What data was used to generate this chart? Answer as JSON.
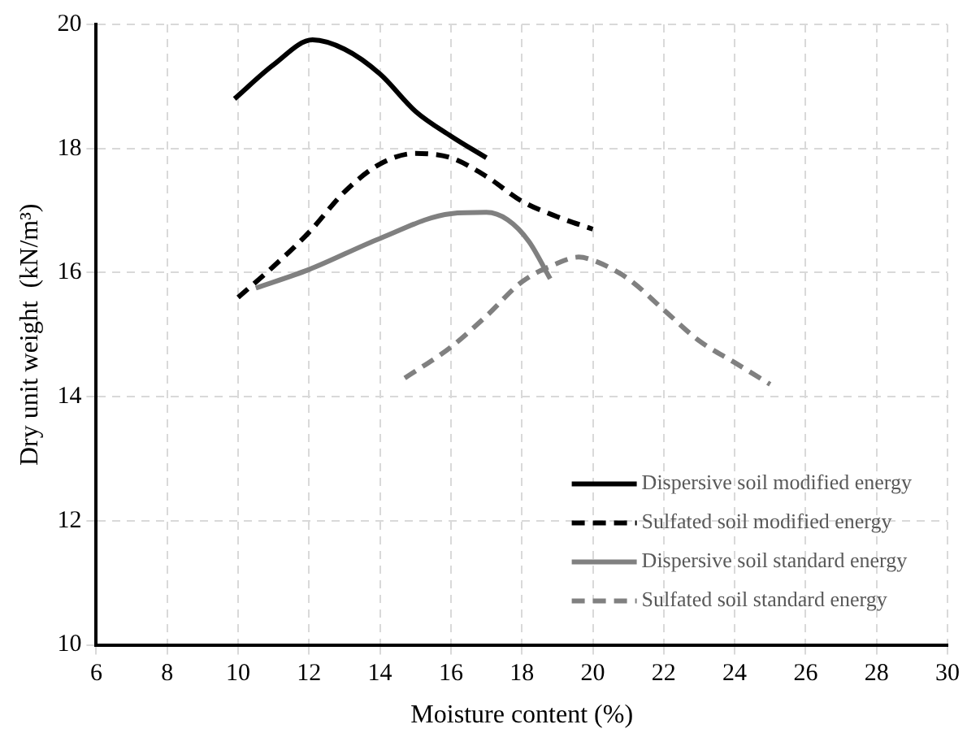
{
  "chart_data": {
    "type": "line",
    "xlabel": "Moisture content (%)",
    "ylabel": "Dry unit weight  (kN/m³)",
    "xlim": [
      6,
      30
    ],
    "xticks": [
      6,
      8,
      10,
      12,
      14,
      16,
      18,
      20,
      22,
      24,
      26,
      28,
      30
    ],
    "ylim": [
      10,
      20
    ],
    "yticks": [
      10,
      12,
      14,
      16,
      18,
      20
    ],
    "grid": true,
    "legend": "bottom right",
    "marker": "none",
    "series": [
      {
        "name": "Dispersive soil modified energy",
        "color": "#000000",
        "line_style": "solid",
        "x": [
          9.9,
          11,
          12.1,
          13,
          14,
          15,
          16,
          17
        ],
        "values": [
          18.8,
          19.35,
          19.75,
          19.6,
          19.2,
          18.6,
          18.2,
          17.85
        ]
      },
      {
        "name": "Sulfated soil modified energy",
        "color": "#000000",
        "line_style": "dashed",
        "x": [
          10,
          11,
          12,
          13,
          14,
          15,
          16,
          17,
          18,
          19,
          20
        ],
        "values": [
          15.6,
          16.1,
          16.65,
          17.3,
          17.75,
          17.92,
          17.85,
          17.55,
          17.15,
          16.9,
          16.7
        ]
      },
      {
        "name": "Dispersive soil standard energy",
        "color": "#808080",
        "line_style": "solid",
        "x": [
          10.5,
          12,
          14,
          16,
          17,
          17.6,
          18.2,
          18.8
        ],
        "values": [
          15.75,
          16.05,
          16.55,
          16.95,
          16.97,
          16.85,
          16.5,
          15.9
        ]
      },
      {
        "name": "Sulfated soil standard energy",
        "color": "#808080",
        "line_style": "dashed",
        "x": [
          14.7,
          16,
          17,
          18,
          19,
          19.6,
          20,
          21,
          22,
          23,
          24,
          25
        ],
        "values": [
          14.3,
          14.8,
          15.3,
          15.85,
          16.15,
          16.25,
          16.2,
          15.9,
          15.4,
          14.9,
          14.55,
          14.2
        ]
      }
    ]
  }
}
